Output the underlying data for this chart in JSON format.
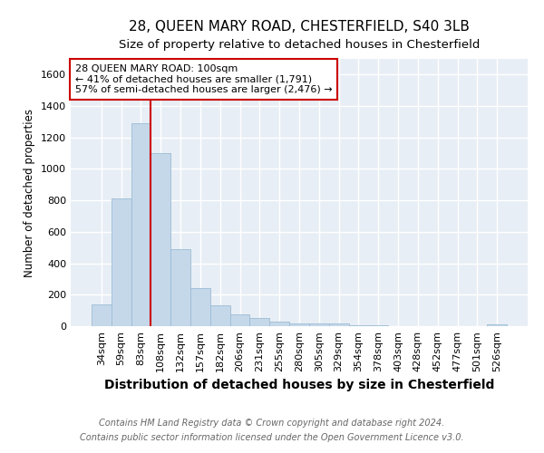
{
  "title": "28, QUEEN MARY ROAD, CHESTERFIELD, S40 3LB",
  "subtitle": "Size of property relative to detached houses in Chesterfield",
  "xlabel": "Distribution of detached houses by size in Chesterfield",
  "ylabel": "Number of detached properties",
  "footer_line1": "Contains HM Land Registry data © Crown copyright and database right 2024.",
  "footer_line2": "Contains public sector information licensed under the Open Government Licence v3.0.",
  "categories": [
    "34sqm",
    "59sqm",
    "83sqm",
    "108sqm",
    "132sqm",
    "157sqm",
    "182sqm",
    "206sqm",
    "231sqm",
    "255sqm",
    "280sqm",
    "305sqm",
    "329sqm",
    "354sqm",
    "378sqm",
    "403sqm",
    "428sqm",
    "452sqm",
    "477sqm",
    "501sqm",
    "526sqm"
  ],
  "values": [
    140,
    810,
    1290,
    1100,
    490,
    240,
    130,
    75,
    50,
    30,
    20,
    15,
    15,
    5,
    3,
    2,
    2,
    1,
    1,
    1,
    12
  ],
  "bar_color": "#c5d8ea",
  "bar_edge_color": "#9bbcd4",
  "red_line_index": 3,
  "annotation_line1": "28 QUEEN MARY ROAD: 100sqm",
  "annotation_line2": "← 41% of detached houses are smaller (1,791)",
  "annotation_line3": "57% of semi-detached houses are larger (2,476) →",
  "annotation_box_color": "#ffffff",
  "annotation_box_edge_color": "#cc0000",
  "red_line_color": "#cc0000",
  "ylim": [
    0,
    1700
  ],
  "yticks": [
    0,
    200,
    400,
    600,
    800,
    1000,
    1200,
    1400,
    1600
  ],
  "background_color": "#e8eef5",
  "grid_color": "#ffffff",
  "title_fontsize": 11,
  "subtitle_fontsize": 9.5,
  "xlabel_fontsize": 10,
  "ylabel_fontsize": 8.5,
  "tick_fontsize": 8,
  "footer_fontsize": 7,
  "annotation_fontsize": 8
}
